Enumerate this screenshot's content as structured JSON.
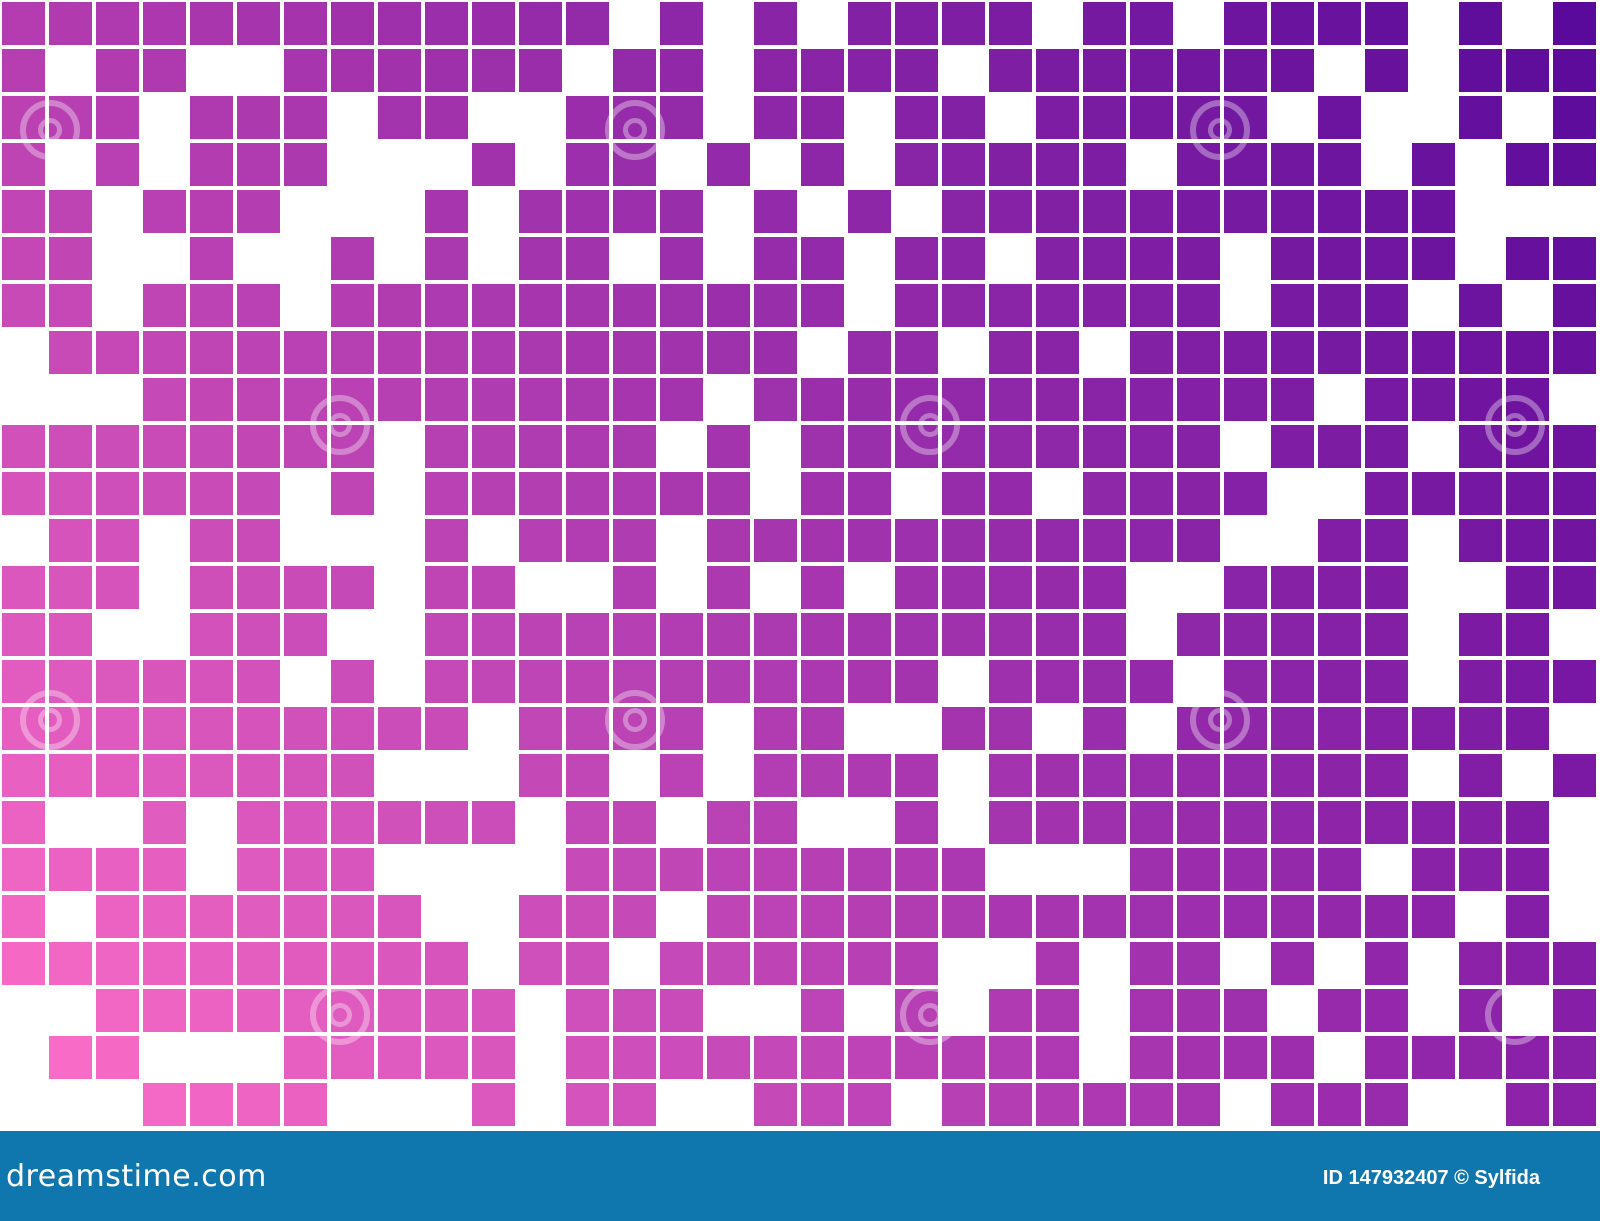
{
  "image": {
    "description_colors": {
      "top_left": "#b43cb0",
      "top_right": "#5a0a9a",
      "bottom_left": "#ff70c8",
      "bottom_right": "#8a20a8",
      "gap": "#ffffff"
    },
    "grid": {
      "columns": 34,
      "rows": 24,
      "fill_ratio": 0.76
    }
  },
  "footer": {
    "logo_text": "dreamstime.com",
    "credit": "ID 147932407 © Sylfida",
    "background": "#0f77ad"
  }
}
